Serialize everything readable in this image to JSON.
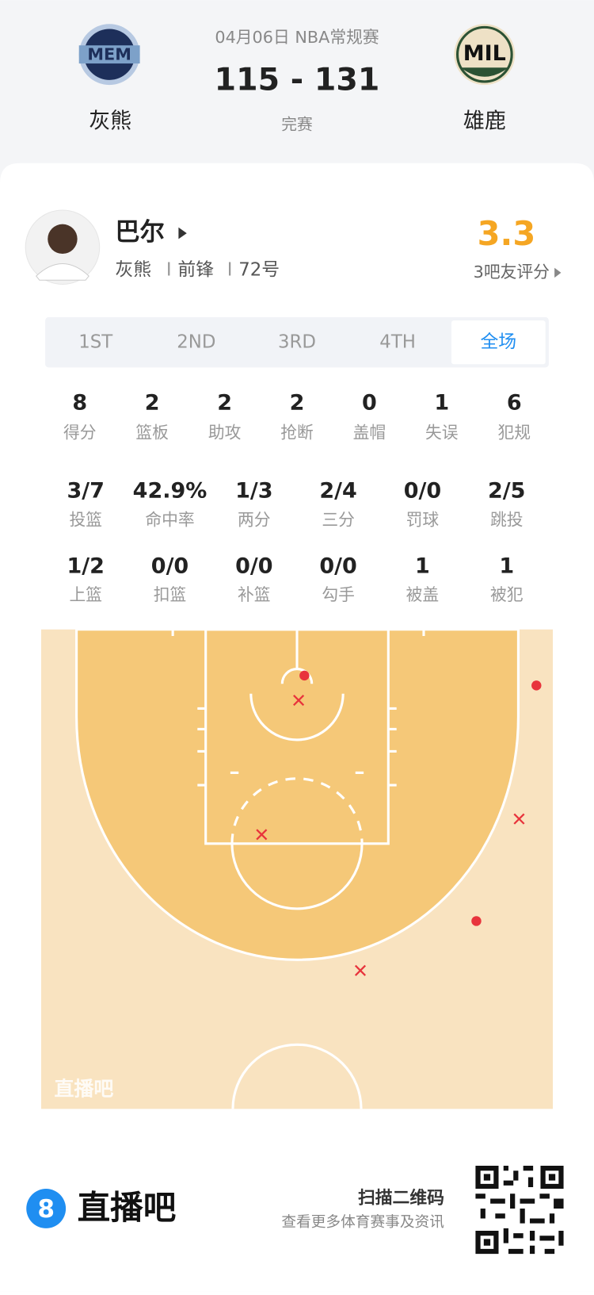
{
  "header": {
    "date_league": "04月06日 NBA常规赛",
    "score": "115 - 131",
    "status": "完赛",
    "home_team": {
      "name": "灰熊",
      "logo_text": "MEM"
    },
    "away_team": {
      "name": "雄鹿",
      "logo_text": "MIL"
    }
  },
  "player": {
    "name": "巴尔",
    "team": "灰熊",
    "position": "前锋",
    "number": "72号",
    "rating": "3.3",
    "rating_label": "3吧友评分"
  },
  "tabs": {
    "items": [
      "1ST",
      "2ND",
      "3RD",
      "4TH",
      "全场"
    ],
    "active": 4
  },
  "stats": {
    "rows": [
      [
        {
          "value": "8",
          "label": "得分"
        },
        {
          "value": "2",
          "label": "篮板"
        },
        {
          "value": "2",
          "label": "助攻"
        },
        {
          "value": "2",
          "label": "抢断"
        },
        {
          "value": "0",
          "label": "盖帽"
        },
        {
          "value": "1",
          "label": "失误"
        },
        {
          "value": "6",
          "label": "犯规"
        }
      ],
      [
        {
          "value": "3/7",
          "label": "投篮"
        },
        {
          "value": "42.9%",
          "label": "命中率"
        },
        {
          "value": "1/3",
          "label": "两分"
        },
        {
          "value": "2/4",
          "label": "三分"
        },
        {
          "value": "0/0",
          "label": "罚球"
        },
        {
          "value": "2/5",
          "label": "跳投"
        }
      ],
      [
        {
          "value": "1/2",
          "label": "上篮"
        },
        {
          "value": "0/0",
          "label": "扣篮"
        },
        {
          "value": "0/0",
          "label": "补篮"
        },
        {
          "value": "0/0",
          "label": "勾手"
        },
        {
          "value": "1",
          "label": "被盖"
        },
        {
          "value": "1",
          "label": "被犯"
        }
      ]
    ]
  },
  "court": {
    "watermark": "直播吧"
  },
  "footer": {
    "logo": "8",
    "brand": "直播吧",
    "scan": "扫描二维码",
    "more": "查看更多体育赛事及资讯"
  }
}
